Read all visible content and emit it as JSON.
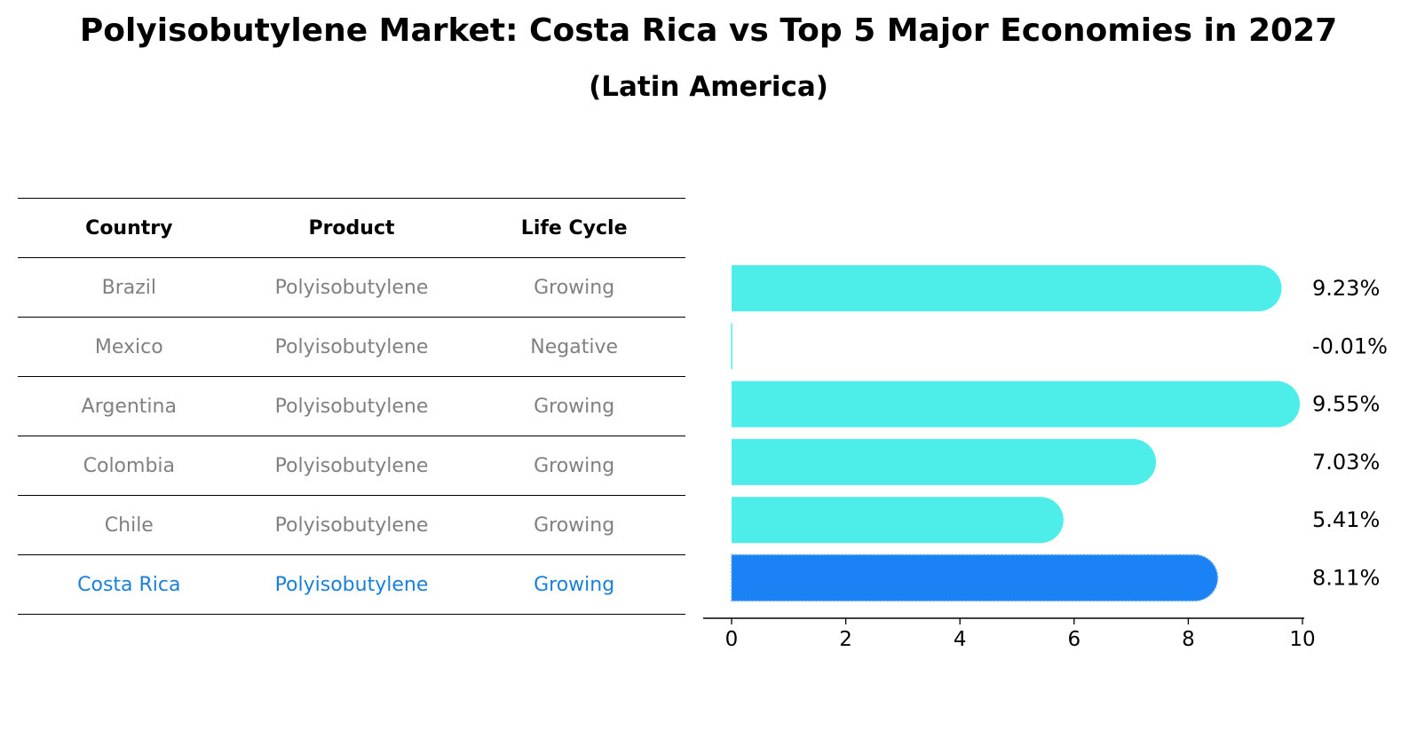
{
  "title": "Polyisobutylene Market: Costa Rica vs Top 5 Major Economies in 2027",
  "subtitle": "(Latin America)",
  "table": {
    "headers": [
      "Country",
      "Product",
      "Life Cycle"
    ],
    "rows": [
      {
        "country": "Brazil",
        "product": "Polyisobutylene",
        "life_cycle": "Growing",
        "highlight": false
      },
      {
        "country": "Mexico",
        "product": "Polyisobutylene",
        "life_cycle": "Negative",
        "highlight": false
      },
      {
        "country": "Argentina",
        "product": "Polyisobutylene",
        "life_cycle": "Growing",
        "highlight": false
      },
      {
        "country": "Colombia",
        "product": "Polyisobutylene",
        "life_cycle": "Growing",
        "highlight": false
      },
      {
        "country": "Chile",
        "product": "Polyisobutylene",
        "life_cycle": "Growing",
        "highlight": false
      },
      {
        "country": "Costa Rica",
        "product": "Polyisobutylene",
        "life_cycle": "Growing",
        "highlight": true
      }
    ]
  },
  "colors": {
    "bar": "#4deeea",
    "highlight_bar": "#1a82f4",
    "highlight_text": "#1a7fd9",
    "muted_text": "#808080"
  },
  "chart_data": {
    "type": "bar",
    "orientation": "horizontal",
    "categories": [
      "Brazil",
      "Mexico",
      "Argentina",
      "Colombia",
      "Chile",
      "Costa Rica"
    ],
    "values": [
      9.23,
      -0.01,
      9.55,
      7.03,
      5.41,
      8.11
    ],
    "value_labels": [
      "9.23%",
      "-0.01%",
      "9.55%",
      "7.03%",
      "5.41%",
      "8.11%"
    ],
    "highlight_category": "Costa Rica",
    "xlim": [
      0,
      10
    ],
    "xticks": [
      0,
      2,
      4,
      6,
      8,
      10
    ],
    "xlabel": "",
    "ylabel": "",
    "grid": false,
    "legend": "none"
  }
}
